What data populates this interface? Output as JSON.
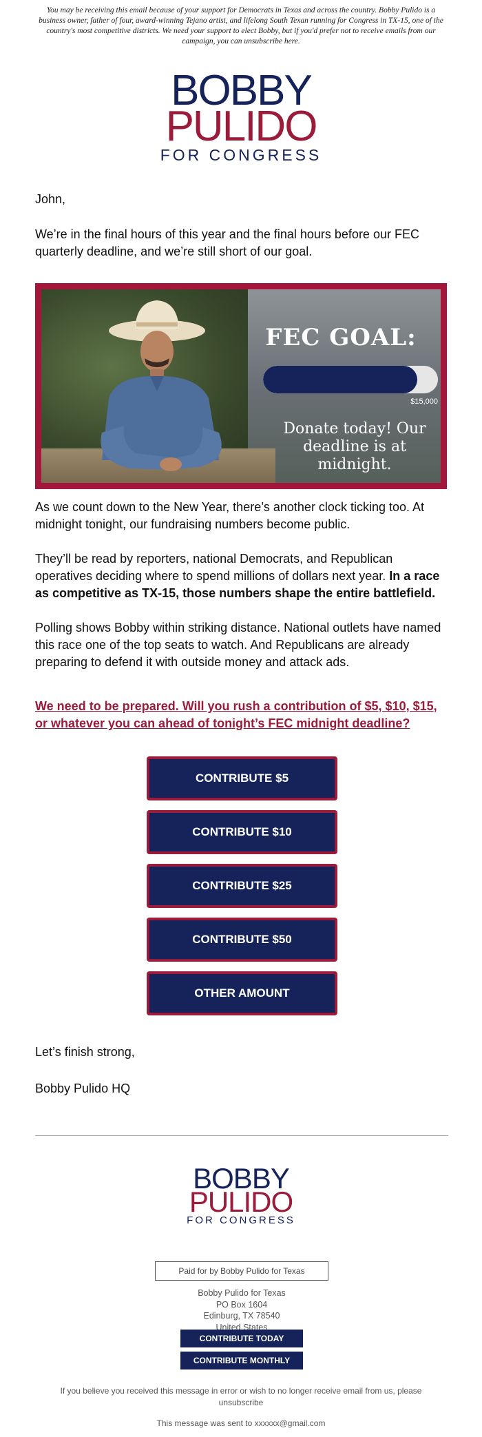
{
  "disclaimer": "You may be receiving this email because of your support for Democrats in Texas and across the country. Bobby Pulido is a business owner, father of four, award-winning Tejano artist, and lifelong South Texan running for Congress in TX-15, one of the country's most competitive districts. We need your support to elect Bobby, but if you'd prefer not to receive emails from our campaign, you can unsubscribe here.",
  "logo": {
    "line1": "BOBBY",
    "line2": "PULIDO",
    "line3": "FOR CONGRESS"
  },
  "body": {
    "greeting": "John,",
    "p1": "We’re in the final hours of this year and the final hours before our FEC quarterly deadline, and we’re still short of our goal.",
    "p2": "As we count down to the New Year, there’s another clock ticking too. At midnight tonight, our fundraising numbers become public.",
    "p3_plain": "They’ll be read by reporters, national Democrats, and Republican operatives deciding where to spend millions of dollars next year. ",
    "p3_bold": "In a race as competitive as TX-15, those numbers shape the entire battlefield.",
    "p4": "Polling shows Bobby within striking distance. National outlets have named this race one of the top seats to watch. And Republicans are already preparing to defend it with outside money and attack ads.",
    "ask": "We need to be prepared. Will you rush a contribution of $5, $10, $15, or whatever you can ahead of tonight’s FEC midnight deadline?",
    "closing": "Let’s finish strong,",
    "signature": "Bobby Pulido HQ"
  },
  "hero": {
    "title": "FEC GOAL:",
    "goal_amount": "$15,000",
    "progress_fraction": 0.88,
    "message": "Donate today! Our deadline is at midnight."
  },
  "buttons": [
    "CONTRIBUTE $5",
    "CONTRIBUTE $10",
    "CONTRIBUTE $25",
    "CONTRIBUTE $50",
    "OTHER AMOUNT"
  ],
  "footer": {
    "paid_for": "Paid for by Bobby Pulido for Texas",
    "address_lines": [
      "Bobby Pulido for Texas",
      "PO Box 1604",
      "Edinburg, TX 78540",
      "United States"
    ],
    "contribute_today": "CONTRIBUTE TODAY",
    "contribute_monthly": "CONTRIBUTE MONTHLY",
    "unsubscribe_text": "If you believe you received this message in error or wish to no longer receive email from us, please unsubscribe",
    "sent_to": "This message was sent to xxxxxx@gmail.com"
  },
  "colors": {
    "navy": "#15235a",
    "crimson": "#9b1b3a"
  }
}
